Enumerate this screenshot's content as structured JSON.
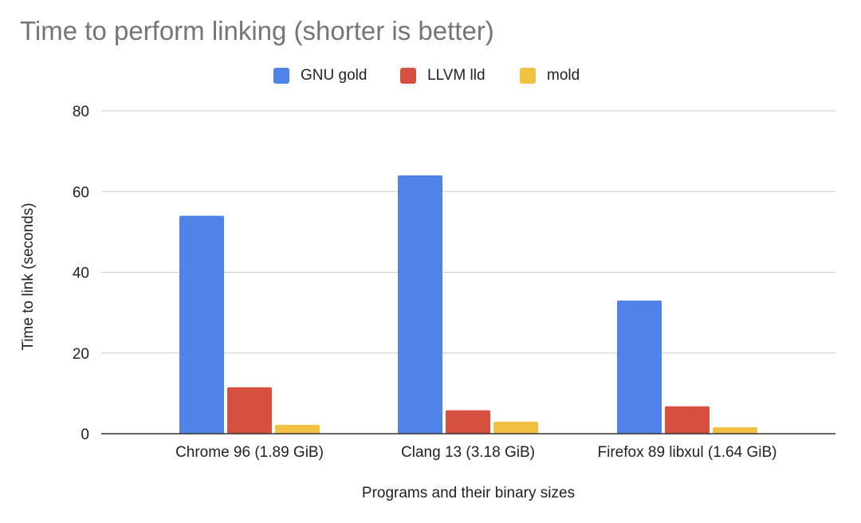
{
  "chart_data": {
    "type": "bar",
    "title": "Time to perform linking (shorter is better)",
    "xlabel": "Programs and their binary sizes",
    "ylabel": "Time to link (seconds)",
    "ylim": [
      0,
      80
    ],
    "yticks": [
      0,
      20,
      40,
      60,
      80
    ],
    "grid": true,
    "legend_position": "top-center",
    "categories": [
      "Chrome 96 (1.89 GiB)",
      "Clang 13 (3.18 GiB)",
      "Firefox 89 libxul (1.64 GiB)"
    ],
    "series": [
      {
        "name": "GNU gold",
        "color": "#4f83e8",
        "values": [
          54,
          64,
          33
        ]
      },
      {
        "name": "LLVM lld",
        "color": "#d65040",
        "values": [
          11.5,
          5.8,
          6.8
        ]
      },
      {
        "name": "mold",
        "color": "#f2c142",
        "values": [
          2.2,
          3.0,
          1.6
        ]
      }
    ]
  }
}
